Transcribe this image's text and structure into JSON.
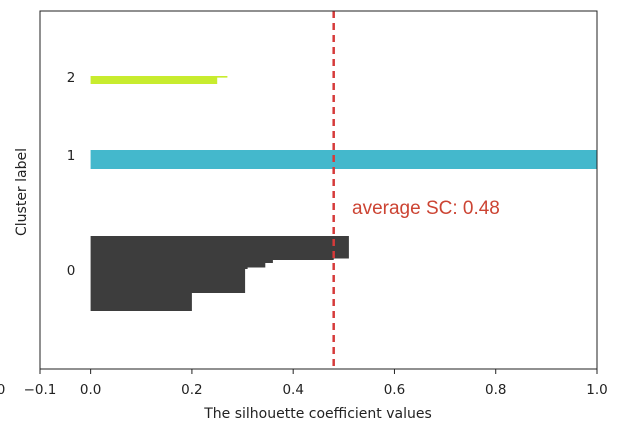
{
  "chart_data": {
    "type": "silhouette",
    "title": "",
    "xlabel": "The silhouette coefficient values",
    "ylabel": "Cluster label",
    "xlim": [
      -0.1,
      1.0
    ],
    "xticks": [
      "−0.1",
      "0.0",
      "0.2",
      "0.4",
      "0.6",
      "0.8",
      "1.0"
    ],
    "xtick_values": [
      -0.1,
      0.0,
      0.2,
      0.4,
      0.6,
      0.8,
      1.0
    ],
    "left_cut_tick": "0",
    "average_sc": 0.48,
    "average_label": "average SC: 0.48",
    "grid": false,
    "clusters": [
      {
        "label": "0",
        "color": "#3d3d3d",
        "profile": [
          {
            "value": 0.51,
            "until": 0.3
          },
          {
            "value": 0.48,
            "until": 0.32
          },
          {
            "value": 0.36,
            "until": 0.36
          },
          {
            "value": 0.345,
            "until": 0.42
          },
          {
            "value": 0.31,
            "until": 0.44
          },
          {
            "value": 0.305,
            "until": 0.76
          },
          {
            "value": 0.2,
            "until": 1.0
          }
        ]
      },
      {
        "label": "1",
        "color": "#44b8cc",
        "profile": [
          {
            "value": 1.0,
            "until": 1.0
          }
        ]
      },
      {
        "label": "2",
        "color": "#c8ec2e",
        "profile": [
          {
            "value": 0.27,
            "until": 0.2
          },
          {
            "value": 0.25,
            "until": 1.0
          }
        ]
      }
    ],
    "avg_line_color": "#d63a3a",
    "annotation_color": "#cc4433"
  }
}
